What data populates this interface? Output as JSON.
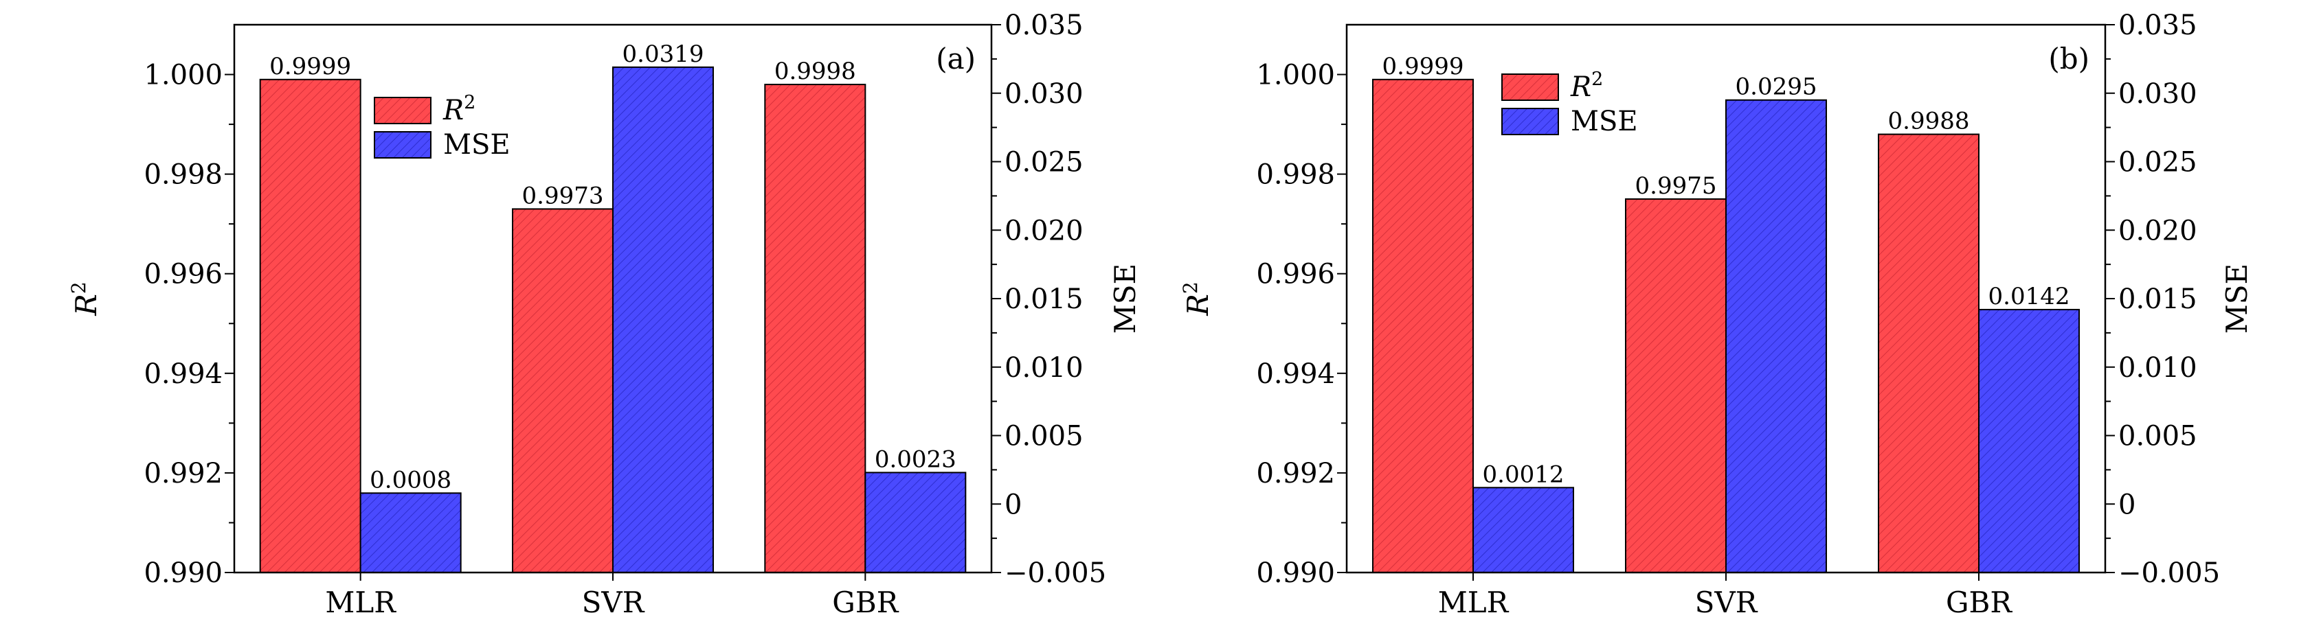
{
  "chart_data": [
    {
      "type": "bar",
      "panel_label": "(a)",
      "categories": [
        "MLR",
        "SVR",
        "GBR"
      ],
      "series": [
        {
          "name": "R2",
          "axis": "left",
          "color": "#ff4a4f",
          "values": [
            0.9999,
            0.9973,
            0.9998
          ],
          "labels": [
            "0.9999",
            "0.9973",
            "0.9998"
          ]
        },
        {
          "name": "MSE",
          "axis": "right",
          "color": "#4a4aff",
          "values": [
            0.0008,
            0.0319,
            0.0023
          ],
          "labels": [
            "0.0008",
            "0.0319",
            "0.0023"
          ]
        }
      ],
      "ylabel": "R2",
      "y2label": "MSE",
      "ylim": [
        0.99,
        1.001
      ],
      "y2lim": [
        -0.005,
        0.035
      ],
      "yticks": [
        "0.990",
        "0.992",
        "0.994",
        "0.996",
        "0.998",
        "1.000"
      ],
      "y2ticks": [
        "−0.005",
        "0",
        "0.005",
        "0.010",
        "0.015",
        "0.020",
        "0.025",
        "0.030",
        "0.035"
      ],
      "legend": "top-left",
      "grid": false
    },
    {
      "type": "bar",
      "panel_label": "(b)",
      "categories": [
        "MLR",
        "SVR",
        "GBR"
      ],
      "series": [
        {
          "name": "R2",
          "axis": "left",
          "color": "#ff4a4f",
          "values": [
            0.9999,
            0.9975,
            0.9988
          ],
          "labels": [
            "0.9999",
            "0.9975",
            "0.9988"
          ]
        },
        {
          "name": "MSE",
          "axis": "right",
          "color": "#4a4aff",
          "values": [
            0.0012,
            0.0295,
            0.0142
          ],
          "labels": [
            "0.0012",
            "0.0295",
            "0.0142"
          ]
        }
      ],
      "ylabel": "R2",
      "y2label": "MSE",
      "ylim": [
        0.99,
        1.001
      ],
      "y2lim": [
        -0.005,
        0.035
      ],
      "yticks": [
        "0.990",
        "0.992",
        "0.994",
        "0.996",
        "0.998",
        "1.000"
      ],
      "y2ticks": [
        "−0.005",
        "0",
        "0.005",
        "0.010",
        "0.015",
        "0.020",
        "0.025",
        "0.030",
        "0.035"
      ],
      "legend": "top-left",
      "grid": false
    }
  ]
}
